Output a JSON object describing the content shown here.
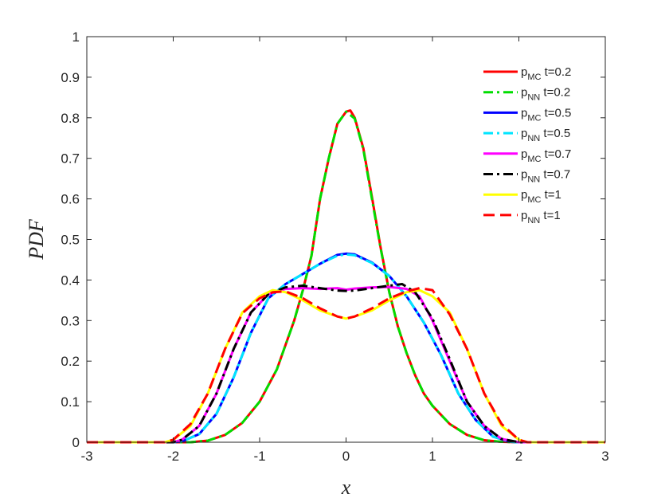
{
  "chart_data": {
    "type": "line",
    "xlabel": "x",
    "ylabel": "PDF",
    "xlim": [
      -3,
      3
    ],
    "ylim": [
      0,
      1
    ],
    "xticks": [
      "-3",
      "-2",
      "-1",
      "0",
      "1",
      "2",
      "3"
    ],
    "yticks": [
      "0",
      "0.1",
      "0.2",
      "0.3",
      "0.4",
      "0.5",
      "0.6",
      "0.7",
      "0.8",
      "0.9",
      "1"
    ],
    "grid": false,
    "legend_position": "top-right",
    "series": [
      {
        "label_main": "p",
        "label_sub": "MC",
        "label_suffix": " t=0.2",
        "color": "#ff0000",
        "style": "solid",
        "points": [
          [
            -3,
            0
          ],
          [
            -2,
            0
          ],
          [
            -1.8,
            0
          ],
          [
            -1.6,
            0.004
          ],
          [
            -1.4,
            0.018
          ],
          [
            -1.2,
            0.048
          ],
          [
            -1.0,
            0.1
          ],
          [
            -0.8,
            0.18
          ],
          [
            -0.6,
            0.3
          ],
          [
            -0.5,
            0.375
          ],
          [
            -0.4,
            0.46
          ],
          [
            -0.3,
            0.6
          ],
          [
            -0.2,
            0.7
          ],
          [
            -0.1,
            0.785
          ],
          [
            0,
            0.815
          ],
          [
            0.05,
            0.818
          ],
          [
            0.1,
            0.8
          ],
          [
            0.2,
            0.725
          ],
          [
            0.3,
            0.605
          ],
          [
            0.4,
            0.48
          ],
          [
            0.5,
            0.37
          ],
          [
            0.6,
            0.285
          ],
          [
            0.7,
            0.22
          ],
          [
            0.8,
            0.165
          ],
          [
            0.9,
            0.12
          ],
          [
            1.0,
            0.09
          ],
          [
            1.2,
            0.045
          ],
          [
            1.4,
            0.018
          ],
          [
            1.6,
            0.005
          ],
          [
            1.8,
            0.001
          ],
          [
            2,
            0
          ],
          [
            3,
            0
          ]
        ]
      },
      {
        "label_main": "p",
        "label_sub": "NN",
        "label_suffix": " t=0.2",
        "color": "#00dd00",
        "style": "dashdot",
        "points": [
          [
            -3,
            0
          ],
          [
            -2,
            0
          ],
          [
            -1.8,
            0
          ],
          [
            -1.6,
            0.004
          ],
          [
            -1.4,
            0.018
          ],
          [
            -1.2,
            0.048
          ],
          [
            -1.0,
            0.1
          ],
          [
            -0.8,
            0.18
          ],
          [
            -0.6,
            0.3
          ],
          [
            -0.5,
            0.375
          ],
          [
            -0.4,
            0.46
          ],
          [
            -0.3,
            0.6
          ],
          [
            -0.2,
            0.7
          ],
          [
            -0.1,
            0.785
          ],
          [
            0,
            0.815
          ],
          [
            0.1,
            0.798
          ],
          [
            0.2,
            0.722
          ],
          [
            0.3,
            0.6
          ],
          [
            0.4,
            0.478
          ],
          [
            0.5,
            0.37
          ],
          [
            0.6,
            0.285
          ],
          [
            0.7,
            0.22
          ],
          [
            0.8,
            0.165
          ],
          [
            0.9,
            0.12
          ],
          [
            1.0,
            0.09
          ],
          [
            1.2,
            0.045
          ],
          [
            1.4,
            0.018
          ],
          [
            1.6,
            0.005
          ],
          [
            1.8,
            0.001
          ],
          [
            2,
            0
          ],
          [
            3,
            0
          ]
        ]
      },
      {
        "label_main": "p",
        "label_sub": "MC",
        "label_suffix": " t=0.5",
        "color": "#0000ff",
        "style": "solid",
        "points": [
          [
            -3,
            0
          ],
          [
            -2,
            0
          ],
          [
            -1.9,
            0.002
          ],
          [
            -1.7,
            0.02
          ],
          [
            -1.5,
            0.07
          ],
          [
            -1.3,
            0.16
          ],
          [
            -1.1,
            0.27
          ],
          [
            -0.9,
            0.355
          ],
          [
            -0.7,
            0.39
          ],
          [
            -0.5,
            0.415
          ],
          [
            -0.3,
            0.44
          ],
          [
            -0.1,
            0.462
          ],
          [
            0,
            0.465
          ],
          [
            0.1,
            0.463
          ],
          [
            0.3,
            0.443
          ],
          [
            0.5,
            0.41
          ],
          [
            0.7,
            0.36
          ],
          [
            0.9,
            0.295
          ],
          [
            1.1,
            0.215
          ],
          [
            1.3,
            0.12
          ],
          [
            1.5,
            0.055
          ],
          [
            1.7,
            0.014
          ],
          [
            1.9,
            0.001
          ],
          [
            2,
            0
          ],
          [
            3,
            0
          ]
        ]
      },
      {
        "label_main": "p",
        "label_sub": "NN",
        "label_suffix": " t=0.5",
        "color": "#00e5ff",
        "style": "dashdot",
        "points": [
          [
            -3,
            0
          ],
          [
            -2,
            0
          ],
          [
            -1.9,
            0.002
          ],
          [
            -1.7,
            0.02
          ],
          [
            -1.5,
            0.07
          ],
          [
            -1.3,
            0.16
          ],
          [
            -1.1,
            0.27
          ],
          [
            -0.9,
            0.355
          ],
          [
            -0.7,
            0.39
          ],
          [
            -0.5,
            0.415
          ],
          [
            -0.3,
            0.44
          ],
          [
            -0.1,
            0.46
          ],
          [
            0,
            0.463
          ],
          [
            0.1,
            0.461
          ],
          [
            0.3,
            0.442
          ],
          [
            0.5,
            0.41
          ],
          [
            0.7,
            0.36
          ],
          [
            0.9,
            0.295
          ],
          [
            1.1,
            0.215
          ],
          [
            1.3,
            0.12
          ],
          [
            1.5,
            0.055
          ],
          [
            1.7,
            0.014
          ],
          [
            1.9,
            0.001
          ],
          [
            2,
            0
          ],
          [
            3,
            0
          ]
        ]
      },
      {
        "label_main": "p",
        "label_sub": "MC",
        "label_suffix": " t=0.7",
        "color": "#ff00ff",
        "style": "solid",
        "points": [
          [
            -3,
            0
          ],
          [
            -2.0,
            0
          ],
          [
            -1.9,
            0.006
          ],
          [
            -1.7,
            0.04
          ],
          [
            -1.5,
            0.12
          ],
          [
            -1.3,
            0.23
          ],
          [
            -1.1,
            0.32
          ],
          [
            -0.9,
            0.365
          ],
          [
            -0.7,
            0.378
          ],
          [
            -0.5,
            0.38
          ],
          [
            -0.3,
            0.378
          ],
          [
            -0.1,
            0.38
          ],
          [
            0,
            0.376
          ],
          [
            0.1,
            0.379
          ],
          [
            0.3,
            0.382
          ],
          [
            0.5,
            0.383
          ],
          [
            0.7,
            0.378
          ],
          [
            0.85,
            0.36
          ],
          [
            1.0,
            0.3
          ],
          [
            1.2,
            0.2
          ],
          [
            1.4,
            0.1
          ],
          [
            1.6,
            0.04
          ],
          [
            1.8,
            0.008
          ],
          [
            2.0,
            0
          ],
          [
            3,
            0
          ]
        ]
      },
      {
        "label_main": "p",
        "label_sub": "NN",
        "label_suffix": " t=0.7",
        "color": "#000000",
        "style": "dashdot",
        "points": [
          [
            -3,
            0
          ],
          [
            -2.0,
            0
          ],
          [
            -1.9,
            0.006
          ],
          [
            -1.7,
            0.04
          ],
          [
            -1.5,
            0.12
          ],
          [
            -1.3,
            0.23
          ],
          [
            -1.1,
            0.32
          ],
          [
            -0.9,
            0.365
          ],
          [
            -0.7,
            0.382
          ],
          [
            -0.5,
            0.386
          ],
          [
            -0.3,
            0.38
          ],
          [
            -0.1,
            0.374
          ],
          [
            0,
            0.373
          ],
          [
            0.1,
            0.374
          ],
          [
            0.3,
            0.38
          ],
          [
            0.5,
            0.386
          ],
          [
            0.65,
            0.39
          ],
          [
            0.8,
            0.37
          ],
          [
            1.0,
            0.305
          ],
          [
            1.2,
            0.205
          ],
          [
            1.4,
            0.1
          ],
          [
            1.6,
            0.04
          ],
          [
            1.8,
            0.008
          ],
          [
            2.0,
            0
          ],
          [
            3,
            0
          ]
        ]
      },
      {
        "label_main": "p",
        "label_sub": "MC",
        "label_suffix": " t=1",
        "color": "#ffff00",
        "style": "solid",
        "points": [
          [
            -3,
            0
          ],
          [
            -2.1,
            0
          ],
          [
            -2.0,
            0.006
          ],
          [
            -1.8,
            0.04
          ],
          [
            -1.6,
            0.12
          ],
          [
            -1.4,
            0.23
          ],
          [
            -1.2,
            0.32
          ],
          [
            -1.0,
            0.36
          ],
          [
            -0.85,
            0.375
          ],
          [
            -0.7,
            0.37
          ],
          [
            -0.5,
            0.35
          ],
          [
            -0.3,
            0.325
          ],
          [
            -0.1,
            0.31
          ],
          [
            0,
            0.305
          ],
          [
            0.1,
            0.31
          ],
          [
            0.3,
            0.325
          ],
          [
            0.5,
            0.35
          ],
          [
            0.7,
            0.37
          ],
          [
            0.85,
            0.375
          ],
          [
            1.0,
            0.36
          ],
          [
            1.2,
            0.32
          ],
          [
            1.4,
            0.23
          ],
          [
            1.6,
            0.12
          ],
          [
            1.8,
            0.04
          ],
          [
            2.0,
            0.006
          ],
          [
            2.1,
            0
          ],
          [
            3,
            0
          ]
        ]
      },
      {
        "label_main": "p",
        "label_sub": "NN",
        "label_suffix": " t=1",
        "color": "#ff0000",
        "style": "dashed",
        "points": [
          [
            -3,
            0
          ],
          [
            -2.1,
            0
          ],
          [
            -2.0,
            0.006
          ],
          [
            -1.8,
            0.045
          ],
          [
            -1.6,
            0.12
          ],
          [
            -1.4,
            0.23
          ],
          [
            -1.2,
            0.318
          ],
          [
            -1.0,
            0.355
          ],
          [
            -0.85,
            0.37
          ],
          [
            -0.7,
            0.372
          ],
          [
            -0.5,
            0.355
          ],
          [
            -0.3,
            0.33
          ],
          [
            -0.1,
            0.31
          ],
          [
            0,
            0.305
          ],
          [
            0.1,
            0.31
          ],
          [
            0.3,
            0.33
          ],
          [
            0.5,
            0.355
          ],
          [
            0.7,
            0.372
          ],
          [
            0.85,
            0.38
          ],
          [
            1.0,
            0.375
          ],
          [
            1.2,
            0.315
          ],
          [
            1.4,
            0.23
          ],
          [
            1.6,
            0.12
          ],
          [
            1.8,
            0.045
          ],
          [
            2.0,
            0.006
          ],
          [
            2.1,
            0
          ],
          [
            3,
            0
          ]
        ]
      }
    ]
  }
}
